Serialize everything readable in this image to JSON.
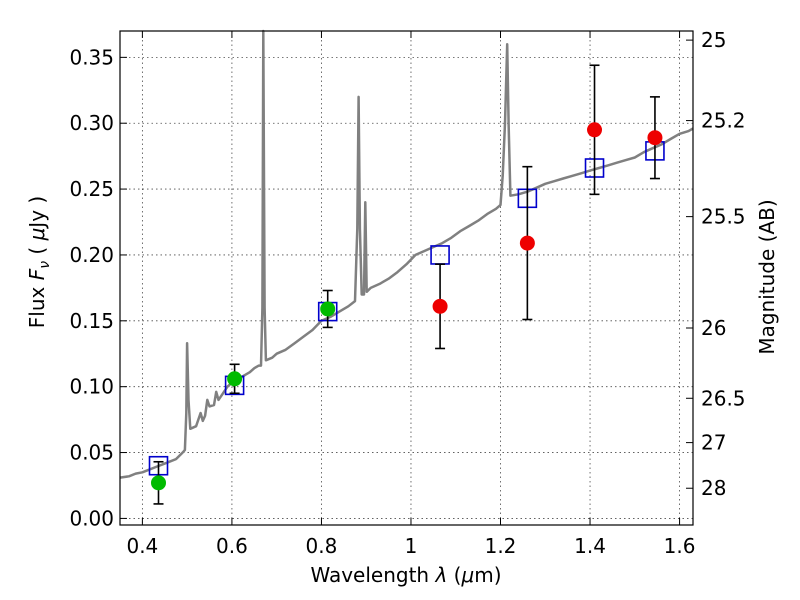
{
  "chart_data": {
    "type": "scatter",
    "xlabel": "Wavelength  λ (μm)",
    "ylabel_left": "Flux  F_ν  ( μJy )",
    "ylabel_left_parts": {
      "a": "Flux  ",
      "b": "F",
      "c": "ν",
      "d": "  ( ",
      "e": "μ",
      "f": "Jy )"
    },
    "xlabel_parts": {
      "a": "Wavelength  ",
      "b": "λ",
      "c": " (",
      "d": "μ",
      "e": "m)"
    },
    "ylabel_right": "Magnitude (AB)",
    "xlim": [
      0.35,
      1.63
    ],
    "ylim": [
      -0.005,
      0.37
    ],
    "grid": true,
    "x_ticks": [
      {
        "v": 0.4,
        "label": "0.4"
      },
      {
        "v": 0.6,
        "label": "0.6"
      },
      {
        "v": 0.8,
        "label": "0.8"
      },
      {
        "v": 1.0,
        "label": "1"
      },
      {
        "v": 1.2,
        "label": "1.2"
      },
      {
        "v": 1.4,
        "label": "1.4"
      },
      {
        "v": 1.6,
        "label": "1.6"
      }
    ],
    "y_ticks": [
      {
        "v": 0.0,
        "label": "0.00"
      },
      {
        "v": 0.05,
        "label": "0.05"
      },
      {
        "v": 0.1,
        "label": "0.10"
      },
      {
        "v": 0.15,
        "label": "0.15"
      },
      {
        "v": 0.2,
        "label": "0.20"
      },
      {
        "v": 0.25,
        "label": "0.25"
      },
      {
        "v": 0.3,
        "label": "0.30"
      },
      {
        "v": 0.35,
        "label": "0.35"
      }
    ],
    "right_ticks": [
      {
        "mag": 25,
        "label": "25"
      },
      {
        "mag": 25.2,
        "label": "25.2"
      },
      {
        "mag": 25.5,
        "label": "25.5"
      },
      {
        "mag": 26,
        "label": "26"
      },
      {
        "mag": 26.5,
        "label": "26.5"
      },
      {
        "mag": 27,
        "label": "27"
      },
      {
        "mag": 28,
        "label": "28"
      }
    ],
    "colors": {
      "spectrum": "#808080",
      "model": "#0000cc",
      "green": "#00bb00",
      "red": "#ee0000",
      "errorbar": "#000000"
    },
    "model_points": [
      {
        "x": 0.436,
        "y": 0.04
      },
      {
        "x": 0.606,
        "y": 0.101
      },
      {
        "x": 0.814,
        "y": 0.157
      },
      {
        "x": 1.065,
        "y": 0.2
      },
      {
        "x": 1.26,
        "y": 0.243
      },
      {
        "x": 1.41,
        "y": 0.266
      },
      {
        "x": 1.545,
        "y": 0.279
      }
    ],
    "series": [
      {
        "color": "green",
        "points": [
          {
            "x": 0.436,
            "y": 0.027,
            "err": 0.016
          },
          {
            "x": 0.606,
            "y": 0.106,
            "err": 0.011
          },
          {
            "x": 0.814,
            "y": 0.159,
            "err": 0.014
          }
        ]
      },
      {
        "color": "red",
        "points": [
          {
            "x": 1.065,
            "y": 0.161,
            "err": 0.032
          },
          {
            "x": 1.26,
            "y": 0.209,
            "err": 0.058
          },
          {
            "x": 1.41,
            "y": 0.295,
            "err": 0.049
          },
          {
            "x": 1.545,
            "y": 0.289,
            "err": 0.031
          }
        ]
      }
    ],
    "spectrum": [
      [
        0.35,
        0.031
      ],
      [
        0.37,
        0.032
      ],
      [
        0.385,
        0.034
      ],
      [
        0.4,
        0.035
      ],
      [
        0.415,
        0.037
      ],
      [
        0.43,
        0.039
      ],
      [
        0.445,
        0.041
      ],
      [
        0.46,
        0.043
      ],
      [
        0.475,
        0.045
      ],
      [
        0.49,
        0.05
      ],
      [
        0.495,
        0.052
      ],
      [
        0.498,
        0.08
      ],
      [
        0.5,
        0.133
      ],
      [
        0.503,
        0.09
      ],
      [
        0.507,
        0.068
      ],
      [
        0.52,
        0.07
      ],
      [
        0.53,
        0.08
      ],
      [
        0.535,
        0.074
      ],
      [
        0.54,
        0.078
      ],
      [
        0.545,
        0.09
      ],
      [
        0.55,
        0.085
      ],
      [
        0.56,
        0.086
      ],
      [
        0.565,
        0.096
      ],
      [
        0.57,
        0.09
      ],
      [
        0.58,
        0.095
      ],
      [
        0.59,
        0.1
      ],
      [
        0.6,
        0.103
      ],
      [
        0.61,
        0.105
      ],
      [
        0.62,
        0.107
      ],
      [
        0.63,
        0.109
      ],
      [
        0.64,
        0.111
      ],
      [
        0.65,
        0.114
      ],
      [
        0.66,
        0.116
      ],
      [
        0.665,
        0.116
      ],
      [
        0.668,
        0.16
      ],
      [
        0.67,
        0.37
      ],
      [
        0.673,
        0.16
      ],
      [
        0.676,
        0.12
      ],
      [
        0.69,
        0.122
      ],
      [
        0.7,
        0.125
      ],
      [
        0.72,
        0.128
      ],
      [
        0.74,
        0.133
      ],
      [
        0.76,
        0.138
      ],
      [
        0.78,
        0.143
      ],
      [
        0.8,
        0.15
      ],
      [
        0.82,
        0.153
      ],
      [
        0.84,
        0.157
      ],
      [
        0.86,
        0.161
      ],
      [
        0.875,
        0.165
      ],
      [
        0.88,
        0.22
      ],
      [
        0.883,
        0.32
      ],
      [
        0.886,
        0.22
      ],
      [
        0.89,
        0.17
      ],
      [
        0.895,
        0.17
      ],
      [
        0.898,
        0.24
      ],
      [
        0.901,
        0.172
      ],
      [
        0.91,
        0.175
      ],
      [
        0.93,
        0.178
      ],
      [
        0.95,
        0.182
      ],
      [
        0.97,
        0.187
      ],
      [
        0.99,
        0.193
      ],
      [
        1.01,
        0.2
      ],
      [
        1.03,
        0.203
      ],
      [
        1.05,
        0.206
      ],
      [
        1.07,
        0.209
      ],
      [
        1.09,
        0.213
      ],
      [
        1.11,
        0.218
      ],
      [
        1.13,
        0.222
      ],
      [
        1.15,
        0.226
      ],
      [
        1.17,
        0.231
      ],
      [
        1.19,
        0.235
      ],
      [
        1.2,
        0.238
      ],
      [
        1.205,
        0.26
      ],
      [
        1.21,
        0.3
      ],
      [
        1.215,
        0.36
      ],
      [
        1.218,
        0.3
      ],
      [
        1.222,
        0.245
      ],
      [
        1.24,
        0.246
      ],
      [
        1.26,
        0.248
      ],
      [
        1.28,
        0.251
      ],
      [
        1.3,
        0.254
      ],
      [
        1.32,
        0.256
      ],
      [
        1.34,
        0.258
      ],
      [
        1.36,
        0.26
      ],
      [
        1.38,
        0.262
      ],
      [
        1.4,
        0.264
      ],
      [
        1.42,
        0.266
      ],
      [
        1.44,
        0.268
      ],
      [
        1.46,
        0.27
      ],
      [
        1.48,
        0.272
      ],
      [
        1.5,
        0.274
      ],
      [
        1.52,
        0.278
      ],
      [
        1.54,
        0.281
      ],
      [
        1.56,
        0.284
      ],
      [
        1.58,
        0.288
      ],
      [
        1.6,
        0.292
      ],
      [
        1.62,
        0.294
      ],
      [
        1.63,
        0.296
      ]
    ]
  }
}
